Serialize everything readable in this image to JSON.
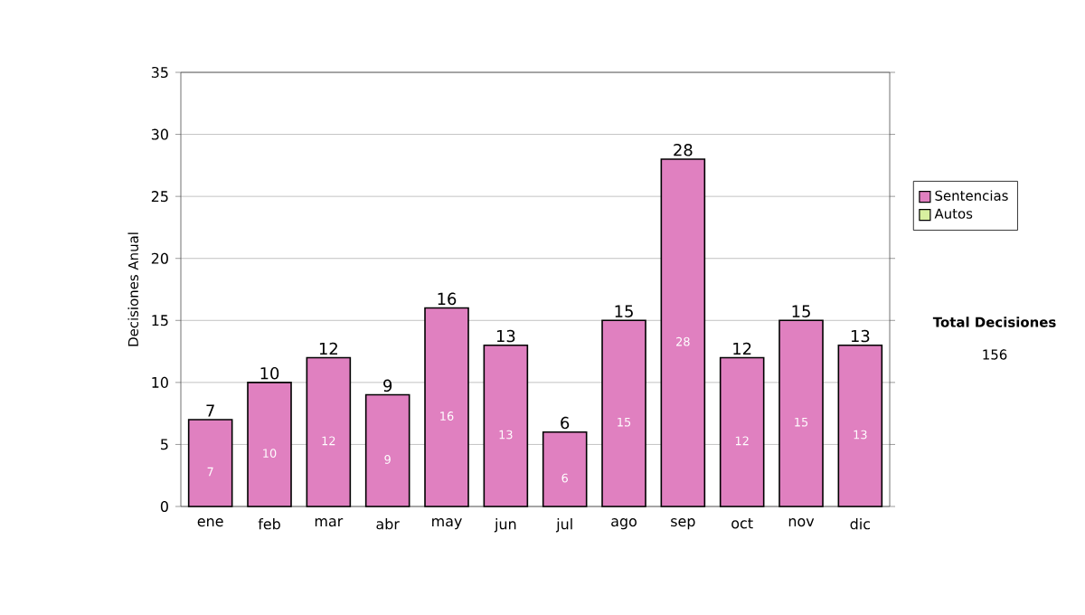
{
  "chart_data": {
    "type": "bar",
    "stacked": true,
    "ylabel": "Decisiones Anual",
    "categories": [
      "ene",
      "feb",
      "mar",
      "abr",
      "may",
      "jun",
      "jul",
      "ago",
      "sep",
      "oct",
      "nov",
      "dic"
    ],
    "series": [
      {
        "name": "Sentencias",
        "color": "#e080c0",
        "values": [
          7,
          10,
          12,
          9,
          16,
          13,
          6,
          15,
          28,
          12,
          15,
          13
        ]
      },
      {
        "name": "Autos",
        "color": "#d8f0a0",
        "values": [
          null,
          null,
          null,
          null,
          null,
          null,
          null,
          null,
          null,
          null,
          null,
          null
        ]
      }
    ],
    "totals": [
      "7",
      "10",
      "12",
      "9",
      "16",
      "13",
      "6",
      "15",
      "28",
      "12",
      "15",
      "13"
    ],
    "data_labels": true,
    "ylim": [
      0,
      35
    ],
    "yticks": [
      0,
      5,
      10,
      15,
      20,
      25,
      30,
      35
    ],
    "grid": "y",
    "legend": "right",
    "annotations": [
      "**Total Decisiones**",
      "156"
    ]
  }
}
